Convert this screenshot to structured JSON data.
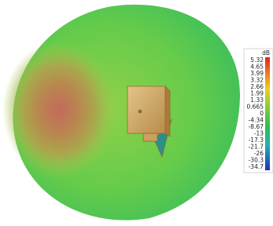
{
  "colorbar": {
    "unit": "dB",
    "labels": [
      5.32,
      4.65,
      3.99,
      3.32,
      2.66,
      1.99,
      1.33,
      0.665,
      0,
      -4.34,
      -8.67,
      -13,
      -17.3,
      -21.7,
      -26,
      -30.3,
      -34.7
    ]
  }
}
